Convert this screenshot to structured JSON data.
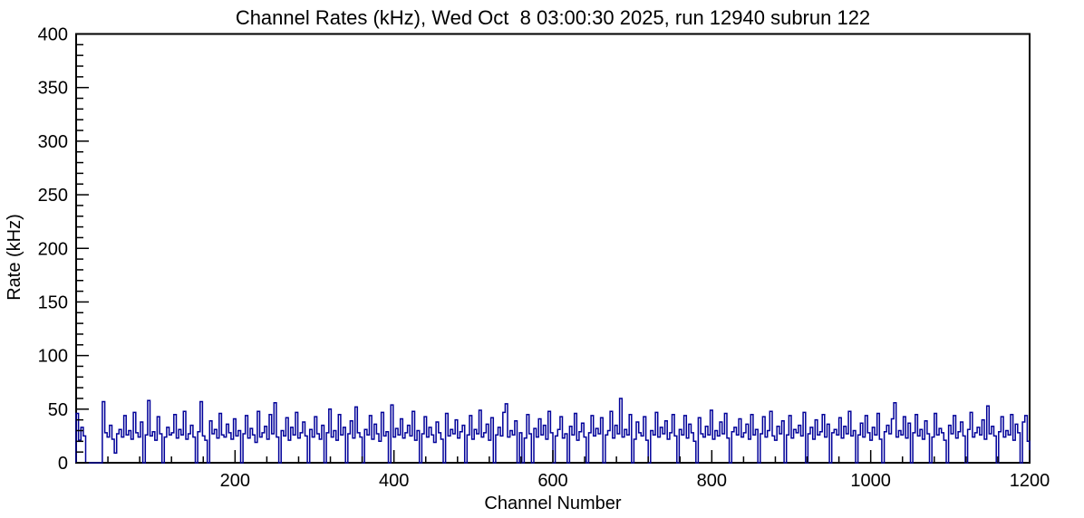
{
  "page": {
    "background_color": "#ffffff",
    "frame_color": "#000000"
  },
  "chart_data": {
    "type": "line",
    "style": "step-histogram",
    "title": "Channel Rates (kHz), Wed Oct  8 03:00:30 2025, run 12940 subrun 122",
    "xlabel": "Channel Number",
    "ylabel": "Rate (kHz)",
    "xlim": [
      0,
      1200
    ],
    "ylim": [
      0,
      400
    ],
    "x_ticks": [
      200,
      400,
      600,
      800,
      1000,
      1200
    ],
    "x_minor_step": 40,
    "y_ticks": [
      0,
      50,
      100,
      150,
      200,
      250,
      300,
      350,
      400
    ],
    "y_minor_step": 10,
    "grid": false,
    "legend": "none",
    "line_color": "#000099",
    "bin_width_channels": 3,
    "values": [
      46,
      21,
      33,
      25,
      0,
      0,
      0,
      0,
      0,
      0,
      0,
      57,
      28,
      24,
      35,
      22,
      9,
      27,
      31,
      24,
      44,
      26,
      30,
      22,
      47,
      28,
      24,
      38,
      0,
      26,
      58,
      25,
      29,
      21,
      43,
      27,
      0,
      24,
      33,
      26,
      28,
      45,
      23,
      31,
      26,
      48,
      22,
      27,
      35,
      24,
      0,
      29,
      57,
      25,
      21,
      0,
      39,
      27,
      31,
      23,
      46,
      26,
      24,
      36,
      28,
      22,
      41,
      25,
      30,
      0,
      27,
      44,
      23,
      32,
      26,
      19,
      48,
      24,
      28,
      34,
      22,
      45,
      27,
      56,
      24,
      0,
      30,
      25,
      42,
      21,
      33,
      26,
      47,
      23,
      28,
      38,
      25,
      0,
      31,
      24,
      43,
      27,
      22,
      35,
      0,
      28,
      50,
      24,
      30,
      21,
      45,
      26,
      33,
      0,
      27,
      39,
      23,
      52,
      28,
      24,
      0,
      31,
      26,
      44,
      22,
      36,
      27,
      20,
      47,
      25,
      29,
      0,
      54,
      24,
      32,
      26,
      41,
      23,
      28,
      35,
      25,
      48,
      21,
      30,
      0,
      27,
      43,
      24,
      33,
      26,
      19,
      38,
      28,
      22,
      0,
      46,
      25,
      31,
      27,
      40,
      23,
      29,
      35,
      0,
      26,
      44,
      22,
      31,
      27,
      49,
      24,
      28,
      36,
      21,
      42,
      0,
      26,
      33,
      25,
      47,
      55,
      24,
      30,
      26,
      39,
      0,
      28,
      0,
      23,
      45,
      27,
      0,
      32,
      24,
      41,
      26,
      35,
      22,
      48,
      28,
      0,
      25,
      31,
      43,
      23,
      27,
      0,
      34,
      26,
      46,
      21,
      29,
      37,
      24,
      0,
      28,
      44,
      25,
      32,
      27,
      42,
      0,
      26,
      30,
      48,
      23,
      35,
      27,
      60,
      24,
      31,
      26,
      45,
      0,
      22,
      38,
      28,
      25,
      43,
      21,
      0,
      30,
      26,
      47,
      24,
      33,
      27,
      39,
      22,
      28,
      45,
      25,
      0,
      31,
      26,
      44,
      23,
      36,
      28,
      20,
      0,
      42,
      27,
      24,
      34,
      26,
      49,
      22,
      30,
      25,
      38,
      27,
      46,
      23,
      0,
      29,
      33,
      26,
      41,
      24,
      28,
      36,
      22,
      45,
      26,
      31,
      0,
      27,
      43,
      24,
      30,
      48,
      25,
      21,
      34,
      27,
      39,
      0,
      26,
      44,
      23,
      31,
      28,
      35,
      25,
      47,
      0,
      27,
      33,
      22,
      40,
      26,
      29,
      45,
      24,
      36,
      0,
      28,
      31,
      26,
      42,
      23,
      34,
      27,
      48,
      25,
      30,
      0,
      26,
      37,
      24,
      44,
      28,
      21,
      33,
      26,
      46,
      22,
      0,
      29,
      35,
      27,
      41,
      56,
      24,
      30,
      26,
      43,
      23,
      37,
      0,
      28,
      45,
      25,
      31,
      22,
      39,
      27,
      0,
      24,
      46,
      26,
      32,
      28,
      21,
      0,
      35,
      27,
      44,
      23,
      29,
      38,
      25,
      0,
      31,
      47,
      24,
      28,
      33,
      26,
      40,
      22,
      53,
      27,
      34,
      25,
      0,
      29,
      43,
      24,
      30,
      26,
      45,
      21,
      36,
      28,
      0,
      38,
      44,
      20
    ]
  }
}
